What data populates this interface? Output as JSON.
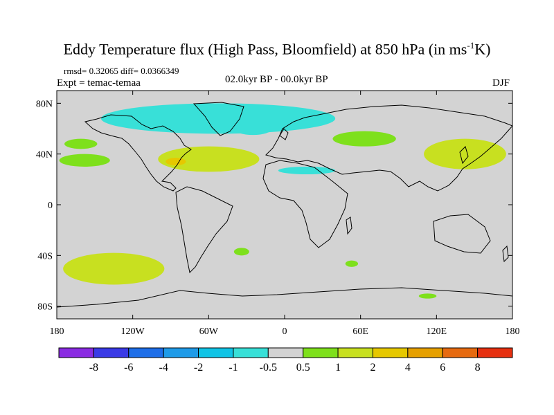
{
  "header": {
    "title_main": "Eddy Temperature flux (High Pass, Bloomfield) at 850 hPa (in ms",
    "title_sup": "-1",
    "title_end": "K)",
    "stats": "rmsd= 0.32065 diff= 0.0366349",
    "experiment": "Expt = temac-temaa",
    "period": "02.0kyr BP - 00.0kyr BP",
    "season": "DJF"
  },
  "chart_data": {
    "type": "heatmap",
    "title": "Eddy Temperature flux (High Pass, Bloomfield) at 850 hPa (in ms-1K)",
    "projection": "cylindrical-equidistant",
    "xlim": [
      -180,
      180
    ],
    "ylim": [
      -90,
      90
    ],
    "x_ticks": [
      -180,
      -120,
      -60,
      0,
      60,
      120,
      180
    ],
    "x_tick_labels": [
      "180",
      "120W",
      "60W",
      "0",
      "60E",
      "120E",
      "180"
    ],
    "y_ticks": [
      80,
      40,
      0,
      -40,
      -80
    ],
    "y_tick_labels": [
      "80N",
      "40N",
      "0",
      "40S",
      "80S"
    ],
    "background_color": "#d3d3d3",
    "coastline_color": "#000000",
    "colorbar": {
      "boundaries": [
        "-8",
        "-6",
        "-4",
        "-2",
        "-1",
        "-0.5",
        "0.5",
        "1",
        "2",
        "4",
        "6",
        "8"
      ],
      "colors": [
        "#8a2be2",
        "#3a3ae6",
        "#1e6ee8",
        "#1f9be8",
        "#10c4e6",
        "#38e0d8",
        "#d3d3d3",
        "#7ee01c",
        "#c8e020",
        "#e6c800",
        "#e6a000",
        "#e66a10",
        "#e63010"
      ]
    },
    "regions": [
      {
        "name": "n-pacific",
        "class": "0.5 to 1",
        "lon": [
          -174,
          -148
        ],
        "lat": [
          44,
          52
        ]
      },
      {
        "name": "e-pacific",
        "class": "0.5 to 1",
        "lon": [
          -178,
          -138
        ],
        "lat": [
          30,
          40
        ]
      },
      {
        "name": "north-atlantic",
        "class": "1 to 2",
        "lon": [
          -100,
          -20
        ],
        "lat": [
          26,
          46
        ]
      },
      {
        "name": "southeast-us",
        "class": "2 to 4",
        "lon": [
          -94,
          -78
        ],
        "lat": [
          31,
          37
        ]
      },
      {
        "name": "central-asia",
        "class": "0.5 to 1",
        "lon": [
          38,
          88
        ],
        "lat": [
          46,
          58
        ]
      },
      {
        "name": "nw-pacific",
        "class": "0.5 to 2",
        "lon": [
          110,
          175
        ],
        "lat": [
          28,
          52
        ]
      },
      {
        "name": "south-pacific",
        "class": "0.5 to 2",
        "lon": [
          -175,
          -95
        ],
        "lat": [
          -63,
          -38
        ]
      },
      {
        "name": "s-indian",
        "class": "0.5 to 1",
        "lon": [
          48,
          58
        ],
        "lat": [
          -49,
          -44
        ]
      },
      {
        "name": "s-atlantic",
        "class": "0.5 to 1",
        "lon": [
          -40,
          -28
        ],
        "lat": [
          -40,
          -34
        ]
      },
      {
        "name": "antarctic",
        "class": "0.5 to 1",
        "lon": [
          106,
          120
        ],
        "lat": [
          -74,
          -70
        ]
      },
      {
        "name": "arctic",
        "class": "-1 to -0.5",
        "lon": [
          -145,
          40
        ],
        "lat": [
          56,
          80
        ]
      },
      {
        "name": "n-africa",
        "class": "-1 to -0.5",
        "lon": [
          -5,
          40
        ],
        "lat": [
          24,
          30
        ]
      },
      {
        "name": "n-atlantic-high",
        "class": "-1 to -0.5",
        "lon": [
          -40,
          -10
        ],
        "lat": [
          55,
          65
        ]
      }
    ]
  }
}
